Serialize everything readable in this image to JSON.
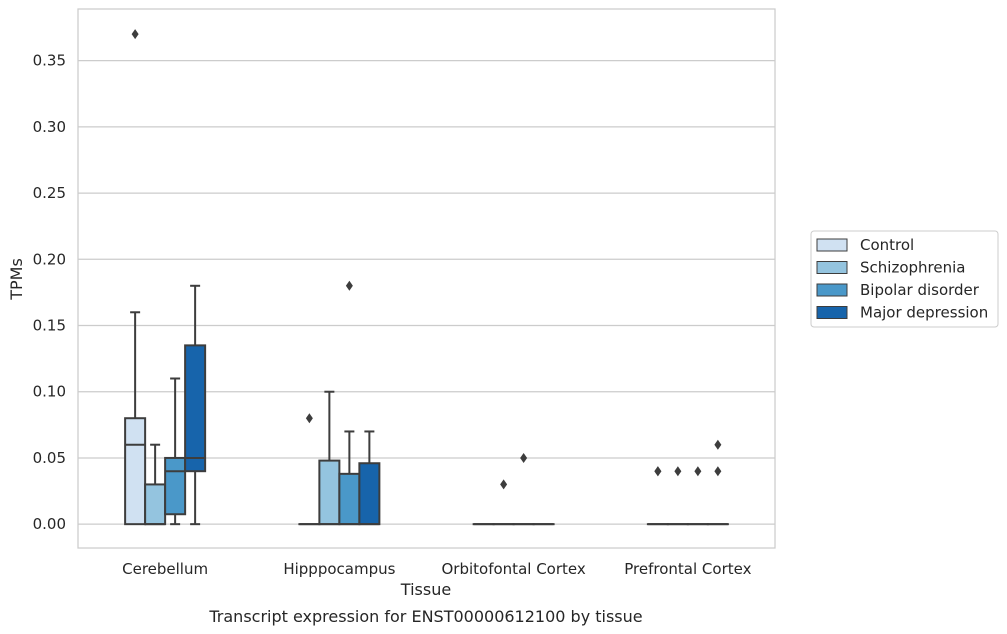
{
  "chart_data": {
    "type": "box",
    "title": "",
    "caption": "Transcript expression for ENST00000612100 by tissue",
    "xlabel": "Tissue",
    "ylabel": "TPMs",
    "ylim": [
      -0.018,
      0.389
    ],
    "yticks": [
      0.0,
      0.05,
      0.1,
      0.15,
      0.2,
      0.25,
      0.3,
      0.35
    ],
    "ytick_labels": [
      "0.00",
      "0.05",
      "0.10",
      "0.15",
      "0.20",
      "0.25",
      "0.30",
      "0.35"
    ],
    "categories": [
      "Cerebellum",
      "Hipppocampus",
      "Orbitofontal Cortex",
      "Prefrontal Cortex"
    ],
    "grid": "horizontal",
    "legend_position": "right",
    "series": [
      {
        "name": "Control",
        "color": "#d0e1f2",
        "boxes": [
          {
            "whisker_low": 0.0,
            "q1": 0.0,
            "median": 0.06,
            "q3": 0.08,
            "whisker_high": 0.16,
            "outliers": [
              0.37
            ]
          },
          {
            "whisker_low": 0.0,
            "q1": 0.0,
            "median": 0.0,
            "q3": 0.0,
            "whisker_high": 0.0,
            "outliers": [
              0.08
            ]
          },
          {
            "whisker_low": 0.0,
            "q1": 0.0,
            "median": 0.0,
            "q3": 0.0,
            "whisker_high": 0.0,
            "outliers": []
          },
          {
            "whisker_low": 0.0,
            "q1": 0.0,
            "median": 0.0,
            "q3": 0.0,
            "whisker_high": 0.0,
            "outliers": [
              0.04,
              0.04
            ]
          }
        ]
      },
      {
        "name": "Schizophrenia",
        "color": "#94c4df",
        "boxes": [
          {
            "whisker_low": 0.0,
            "q1": 0.0,
            "median": 0.0,
            "q3": 0.03,
            "whisker_high": 0.06,
            "outliers": []
          },
          {
            "whisker_low": 0.0,
            "q1": 0.0,
            "median": 0.0,
            "q3": 0.048,
            "whisker_high": 0.1,
            "outliers": []
          },
          {
            "whisker_low": 0.0,
            "q1": 0.0,
            "median": 0.0,
            "q3": 0.0,
            "whisker_high": 0.0,
            "outliers": [
              0.03
            ]
          },
          {
            "whisker_low": 0.0,
            "q1": 0.0,
            "median": 0.0,
            "q3": 0.0,
            "whisker_high": 0.0,
            "outliers": [
              0.04
            ]
          }
        ]
      },
      {
        "name": "Bipolar disorder",
        "color": "#4a98c9",
        "boxes": [
          {
            "whisker_low": 0.0,
            "q1": 0.0075,
            "median": 0.04,
            "q3": 0.05,
            "whisker_high": 0.11,
            "outliers": []
          },
          {
            "whisker_low": 0.0,
            "q1": 0.0,
            "median": 0.0,
            "q3": 0.038,
            "whisker_high": 0.07,
            "outliers": [
              0.18
            ]
          },
          {
            "whisker_low": 0.0,
            "q1": 0.0,
            "median": 0.0,
            "q3": 0.0,
            "whisker_high": 0.0,
            "outliers": [
              0.05
            ]
          },
          {
            "whisker_low": 0.0,
            "q1": 0.0,
            "median": 0.0,
            "q3": 0.0,
            "whisker_high": 0.0,
            "outliers": [
              0.04
            ]
          }
        ]
      },
      {
        "name": "Major depression",
        "color": "#1764ab",
        "boxes": [
          {
            "whisker_low": 0.0,
            "q1": 0.04,
            "median": 0.05,
            "q3": 0.135,
            "whisker_high": 0.18,
            "outliers": []
          },
          {
            "whisker_low": 0.0,
            "q1": 0.0,
            "median": 0.0,
            "q3": 0.046,
            "whisker_high": 0.07,
            "outliers": []
          },
          {
            "whisker_low": 0.0,
            "q1": 0.0,
            "median": 0.0,
            "q3": 0.0,
            "whisker_high": 0.0,
            "outliers": []
          },
          {
            "whisker_low": 0.0,
            "q1": 0.0,
            "median": 0.0,
            "q3": 0.0,
            "whisker_high": 0.0,
            "outliers": [
              0.04,
              0.06
            ]
          }
        ]
      }
    ]
  },
  "colors": {
    "grid": "#cccccc",
    "frame": "#cccccc",
    "box_edge": "#3d3d3d",
    "text": "#262626"
  }
}
